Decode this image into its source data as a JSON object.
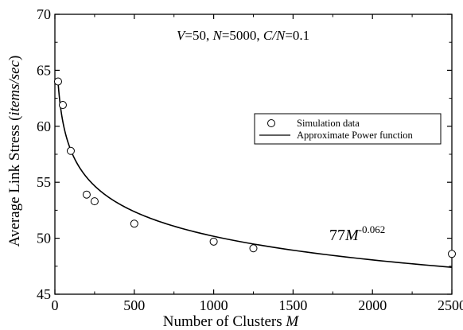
{
  "chart_data": {
    "type": "scatter",
    "xlabel": "Number of Clusters M",
    "ylabel": "Average Link Stress (items/sec)",
    "xlim": [
      0,
      2500
    ],
    "ylim": [
      45,
      70
    ],
    "x_ticks": [
      0,
      500,
      1000,
      1500,
      2000,
      2500
    ],
    "y_ticks": [
      45,
      50,
      55,
      60,
      65,
      70
    ],
    "grid": false,
    "legend_position": "middle-right",
    "annotation": {
      "V": "V",
      "V_val": "=50, ",
      "N": "N",
      "N_val": "=5000, ",
      "CN": "C/N",
      "CN_val": "=0.1"
    },
    "fit_label": {
      "coefficient": "77",
      "variable": "M",
      "exponent": "-0.062"
    },
    "series": [
      {
        "name": "Simulation data",
        "kind": "scatter",
        "marker": "open-circle",
        "x": [
          20,
          50,
          100,
          200,
          250,
          500,
          1000,
          1250,
          2500
        ],
        "y": [
          64.0,
          61.9,
          57.8,
          53.9,
          53.3,
          51.3,
          49.7,
          49.1,
          48.6
        ]
      },
      {
        "name": "Approximate Power function",
        "kind": "line",
        "formula": "77*M^-0.062",
        "coefficient": 77,
        "exponent": -0.062,
        "x_range": [
          20,
          2500
        ]
      }
    ],
    "colors": {
      "axis": "#000000",
      "data": "#000000",
      "background": "#ffffff"
    }
  }
}
